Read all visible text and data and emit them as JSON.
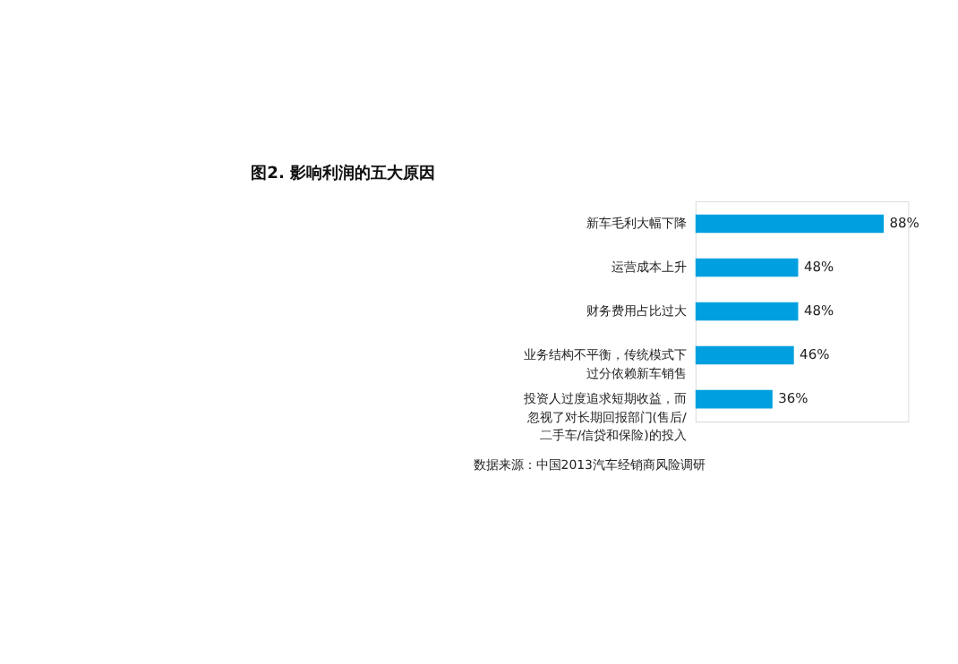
{
  "chart_data": {
    "type": "bar",
    "orientation": "horizontal",
    "title": "图2. 影响利润的五大原因",
    "categories": [
      "新车毛利大幅下降",
      "运营成本上升",
      "财务费用占比过大",
      "业务结构不平衡，传统模式下过分依赖新车销售",
      "投资人过度追求短期收益，而忽视了对长期回报部门(售后/二手车/信贷和保险)的投入"
    ],
    "values": [
      88,
      48,
      48,
      46,
      36
    ],
    "color": "#00a0e0",
    "value_labels": [
      "88%",
      "48%",
      "48%",
      "46%",
      "36%"
    ],
    "annotations": [
      "数据来源：中国2013汽车经销商风险调研"
    ]
  }
}
